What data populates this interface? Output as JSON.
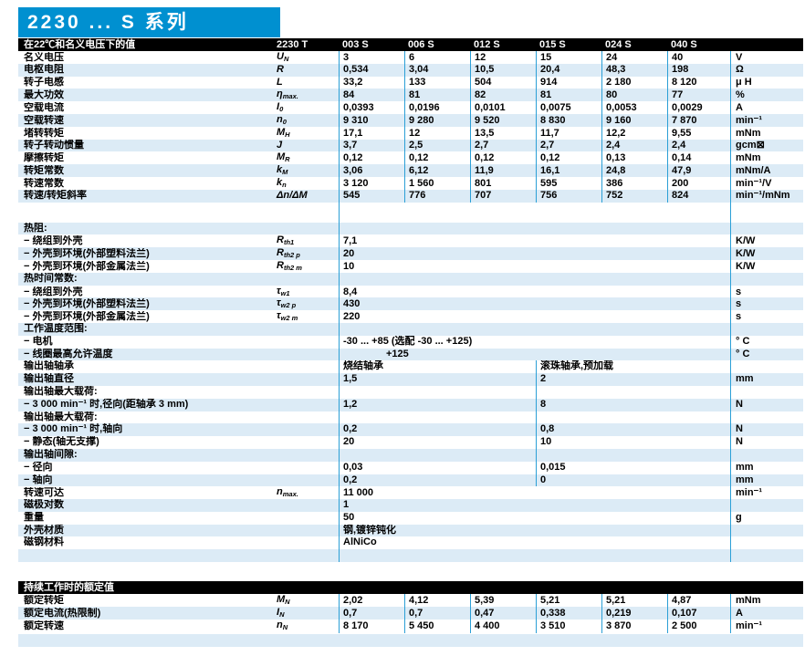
{
  "title": "2230 ... S 系列",
  "colors": {
    "brand_blue": "#0090d0",
    "row_stripe": "#dcebf6",
    "column_divider": "#2b9fd6",
    "header_bar": "#000000"
  },
  "main_table": {
    "caption": "在22℃和名义电压下的值",
    "model_header": "2230 T",
    "column_headers": [
      "003 S",
      "006 S",
      "012 S",
      "015 S",
      "024 S",
      "040 S"
    ],
    "rows": [
      {
        "type": "data",
        "shade": false,
        "label": "名义电压",
        "sym": "U",
        "sub": "N",
        "values": [
          "3",
          "6",
          "12",
          "15",
          "24",
          "40"
        ],
        "unit": "V"
      },
      {
        "type": "data",
        "shade": true,
        "label": "电枢电阻",
        "sym": "R",
        "sub": "",
        "values": [
          "0,534",
          "3,04",
          "10,5",
          "20,4",
          "48,3",
          "198"
        ],
        "unit": "Ω"
      },
      {
        "type": "data",
        "shade": false,
        "label": "转子电感",
        "sym": "L",
        "sub": "",
        "values": [
          "33,2",
          "133",
          "504",
          "914",
          "2 180",
          "8 120"
        ],
        "unit": "μ H"
      },
      {
        "type": "data",
        "shade": true,
        "label": "最大功效",
        "sym": "η",
        "sub": "max.",
        "values": [
          "84",
          "81",
          "82",
          "81",
          "80",
          "77"
        ],
        "unit": "%"
      },
      {
        "type": "data",
        "shade": false,
        "label": "空载电流",
        "sym": "I",
        "sub": "0",
        "values": [
          "0,0393",
          "0,0196",
          "0,0101",
          "0,0075",
          "0,0053",
          "0,0029"
        ],
        "unit": "A"
      },
      {
        "type": "data",
        "shade": true,
        "label": "空载转速",
        "sym": "n",
        "sub": "0",
        "values": [
          "9 310",
          "9 280",
          "9 520",
          "8 830",
          "9 160",
          "7 870"
        ],
        "unit": "min⁻¹"
      },
      {
        "type": "data",
        "shade": false,
        "label": "堵转转矩",
        "sym": "M",
        "sub": "H",
        "values": [
          "17,1",
          "12",
          "13,5",
          "11,7",
          "12,2",
          "9,55"
        ],
        "unit": "mNm"
      },
      {
        "type": "data",
        "shade": true,
        "label": "转子转动惯量",
        "sym": "J",
        "sub": "",
        "values": [
          "3,7",
          "2,5",
          "2,7",
          "2,7",
          "2,4",
          "2,4"
        ],
        "unit": "gcm⊠"
      },
      {
        "type": "data",
        "shade": false,
        "label": "摩擦转矩",
        "sym": "M",
        "sub": "R",
        "values": [
          "0,12",
          "0,12",
          "0,12",
          "0,12",
          "0,13",
          "0,14"
        ],
        "unit": "mNm"
      },
      {
        "type": "data",
        "shade": true,
        "label": "转矩常数",
        "sym": "k",
        "sub": "M",
        "values": [
          "3,06",
          "6,12",
          "11,9",
          "16,1",
          "24,8",
          "47,9"
        ],
        "unit": "mNm/A"
      },
      {
        "type": "data",
        "shade": false,
        "label": "转速常数",
        "sym": "k",
        "sub": "n",
        "values": [
          "3 120",
          "1 560",
          "801",
          "595",
          "386",
          "200"
        ],
        "unit": "min⁻¹/V"
      },
      {
        "type": "data",
        "shade": true,
        "label": "转速/转矩斜率",
        "sym": "Δn/ΔM",
        "sub": "",
        "values": [
          "545",
          "776",
          "707",
          "756",
          "752",
          "824"
        ],
        "unit": "min⁻¹/mNm"
      },
      {
        "type": "gap"
      },
      {
        "type": "head",
        "shade": true,
        "label": "热阻:"
      },
      {
        "type": "single",
        "shade": false,
        "label": "− 绕组到外壳",
        "sym": "R",
        "sub": "th1",
        "value": "7,1",
        "unit": "K/W"
      },
      {
        "type": "single",
        "shade": true,
        "label": "− 外壳到环境(外部塑料法兰)",
        "sym": "R",
        "sub": "th2 p",
        "value": "20",
        "unit": "K/W"
      },
      {
        "type": "single",
        "shade": false,
        "label": "− 外壳到环境(外部金属法兰)",
        "sym": "R",
        "sub": "th2 m",
        "value": "10",
        "unit": "K/W"
      },
      {
        "type": "head",
        "shade": true,
        "label": "热时间常数:"
      },
      {
        "type": "single",
        "shade": false,
        "label": "− 绕组到外壳",
        "sym": "τ",
        "sub": "w1",
        "value": "8,4",
        "unit": "s"
      },
      {
        "type": "single",
        "shade": true,
        "label": "− 外壳到环境(外部塑料法兰)",
        "sym": "τ",
        "sub": "w2 p",
        "value": "430",
        "unit": "s"
      },
      {
        "type": "single",
        "shade": false,
        "label": "− 外壳到环境(外部金属法兰)",
        "sym": "τ",
        "sub": "w2 m",
        "value": "220",
        "unit": "s"
      },
      {
        "type": "head",
        "shade": true,
        "label": "工作温度范围:"
      },
      {
        "type": "single",
        "shade": false,
        "label": "− 电机",
        "value": "-30 ... +85 (选配 -30 ... +125)",
        "unit": "° C"
      },
      {
        "type": "single",
        "shade": true,
        "label": "− 线圈最高允许温度",
        "value": "+125",
        "unit": "° C",
        "indent": true
      },
      {
        "type": "double",
        "shade": false,
        "label": "输出轴轴承",
        "values": [
          "烧结轴承",
          "滚珠轴承,预加载"
        ],
        "unit": ""
      },
      {
        "type": "double",
        "shade": true,
        "label": "输出轴直径",
        "values": [
          "1,5",
          "2"
        ],
        "unit": "mm"
      },
      {
        "type": "head",
        "shade": false,
        "label": "输出轴最大载荷:",
        "mid": true
      },
      {
        "type": "double",
        "shade": true,
        "label": "− 3 000 min⁻¹ 时,径向(距轴承 3 mm)",
        "values": [
          "1,2",
          "8"
        ],
        "unit": "N"
      },
      {
        "type": "head",
        "shade": false,
        "label": "输出轴最大载荷:",
        "mid": true
      },
      {
        "type": "double",
        "shade": true,
        "label": "− 3 000 min⁻¹ 时,轴向",
        "values": [
          "0,2",
          "0,8"
        ],
        "unit": "N"
      },
      {
        "type": "double",
        "shade": false,
        "label": "− 静态(轴无支撑)",
        "values": [
          "20",
          "10"
        ],
        "unit": "N"
      },
      {
        "type": "head",
        "shade": true,
        "label": "输出轴间隙:",
        "mid": true
      },
      {
        "type": "double",
        "shade": false,
        "label": "− 径向",
        "values": [
          "0,03",
          "0,015"
        ],
        "unit": "mm"
      },
      {
        "type": "double",
        "shade": true,
        "label": "− 轴向",
        "values": [
          "0,2",
          "0"
        ],
        "unit": "mm"
      },
      {
        "type": "single",
        "shade": false,
        "label": "转速可达",
        "sym": "n",
        "sub": "max.",
        "value": "11 000",
        "unit": "min⁻¹"
      },
      {
        "type": "single",
        "shade": true,
        "label": "磁极对数",
        "value": "1",
        "unit": ""
      },
      {
        "type": "single",
        "shade": false,
        "label": "重量",
        "value": "50",
        "unit": "g"
      },
      {
        "type": "single",
        "shade": true,
        "label": "外壳材质",
        "value": "钢,镀锌钝化",
        "unit": ""
      },
      {
        "type": "single",
        "shade": false,
        "label": "磁钢材料",
        "value": "AlNiCo",
        "unit": ""
      },
      {
        "type": "blank",
        "shade": true
      }
    ]
  },
  "rated_table": {
    "caption": "持续工作时的额定值",
    "rows": [
      {
        "type": "data",
        "shade": false,
        "label": "额定转矩",
        "sym": "M",
        "sub": "N",
        "values": [
          "2,02",
          "4,12",
          "5,39",
          "5,21",
          "5,21",
          "4,87"
        ],
        "unit": "mNm"
      },
      {
        "type": "data",
        "shade": true,
        "label": "额定电流(热限制)",
        "sym": "I",
        "sub": "N",
        "values": [
          "0,7",
          "0,7",
          "0,47",
          "0,338",
          "0,219",
          "0,107"
        ],
        "unit": "A"
      },
      {
        "type": "data",
        "shade": false,
        "label": "额定转速",
        "sym": "n",
        "sub": "N",
        "values": [
          "8 170",
          "5 450",
          "4 400",
          "3 510",
          "3 870",
          "2 500"
        ],
        "unit": "min⁻¹"
      },
      {
        "type": "spacer"
      },
      {
        "type": "blankplain",
        "shade": true
      }
    ]
  }
}
